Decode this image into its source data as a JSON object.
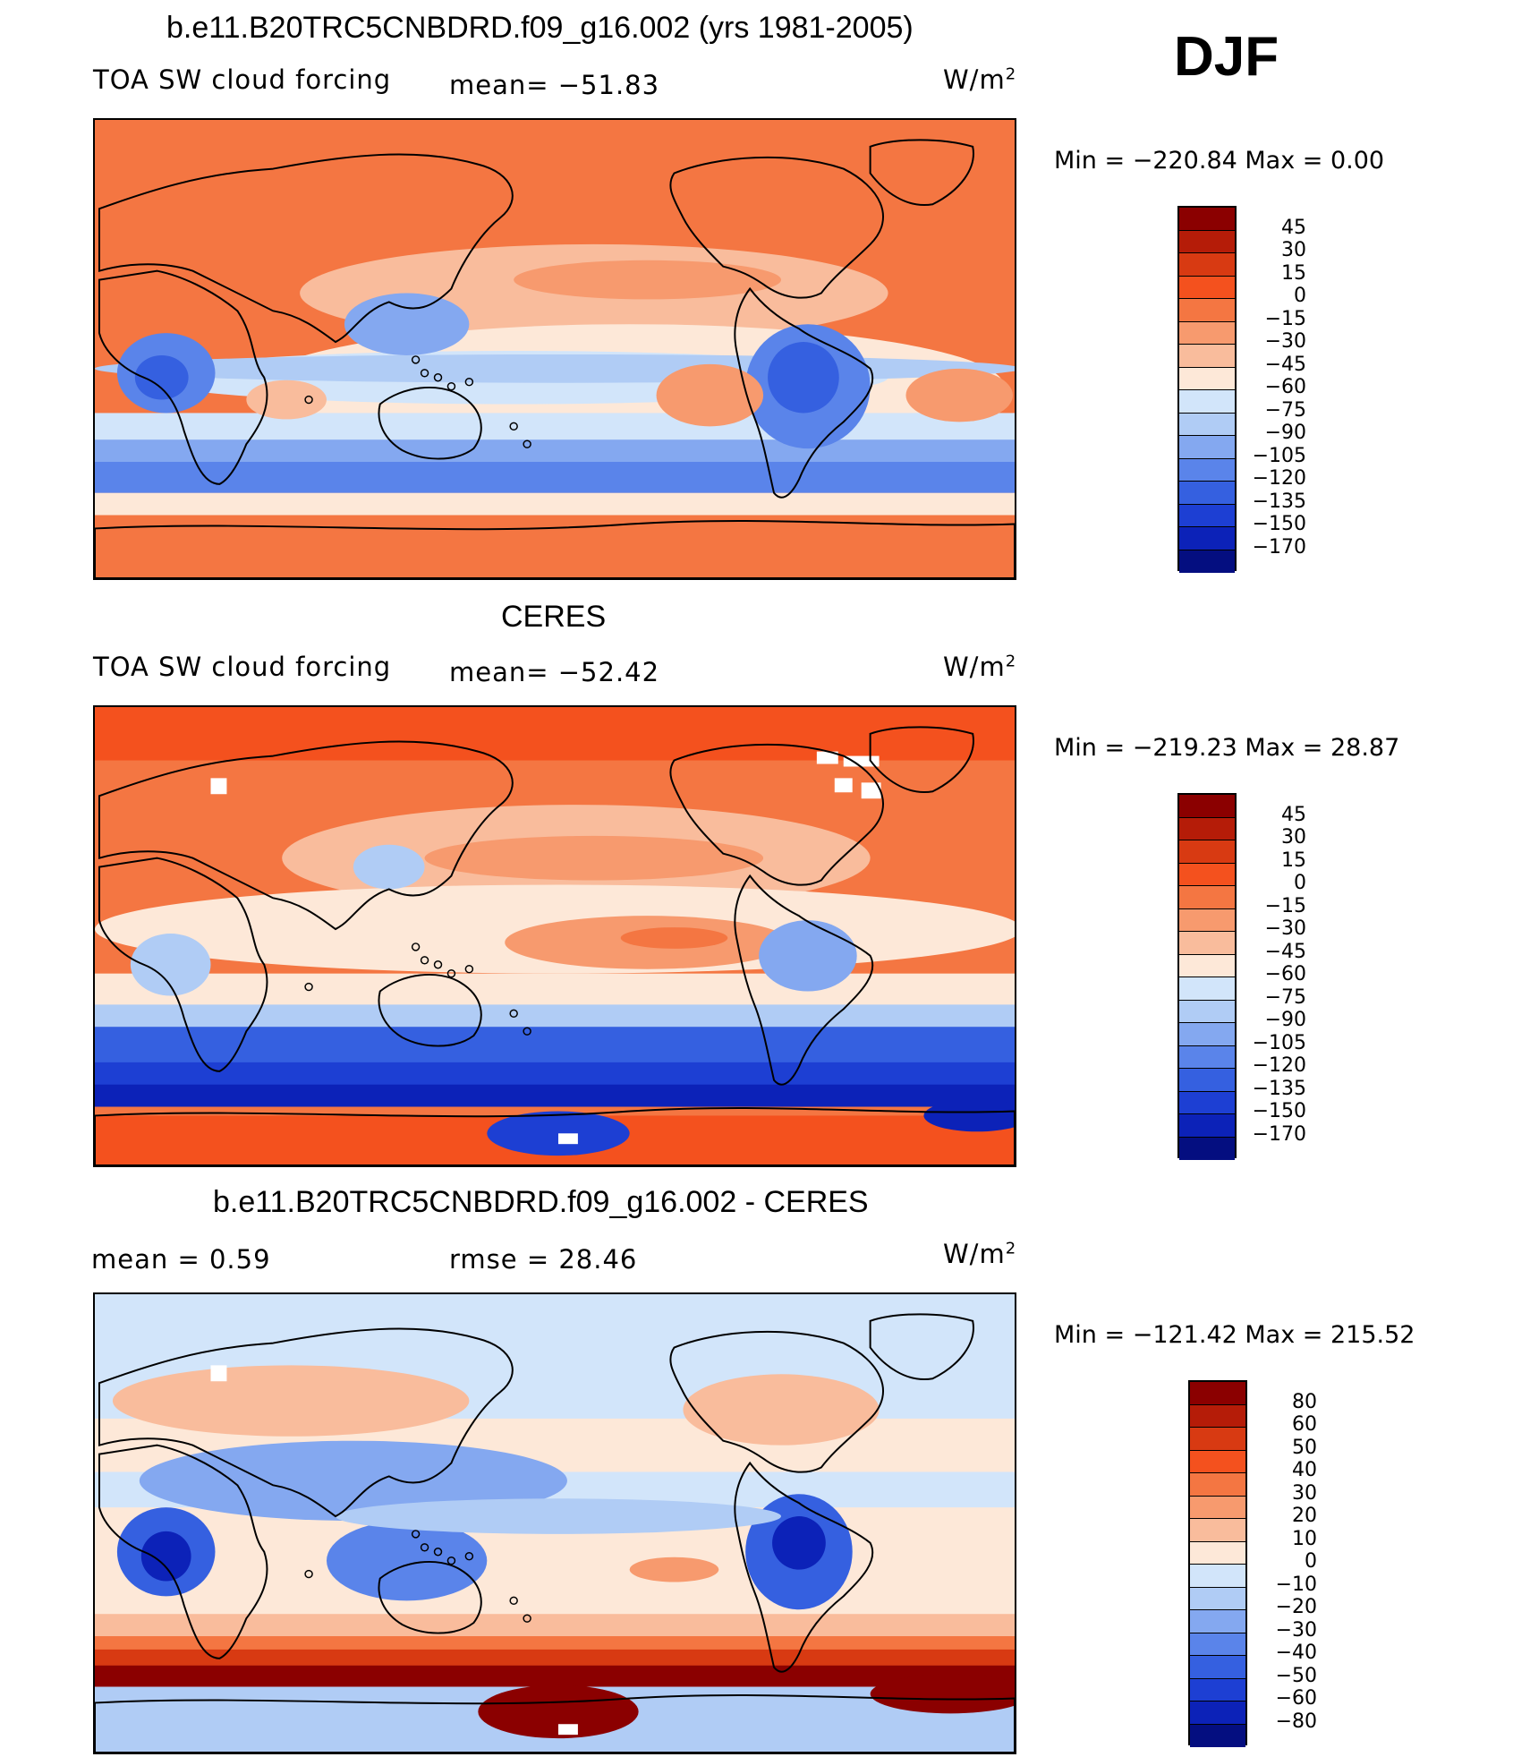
{
  "season": "DJF",
  "units_base": "W/m",
  "units_exp": "2",
  "panels": [
    {
      "title": "b.e11.B20TRC5CNBDRD.f09_g16.002 (yrs 1981-2005)",
      "left_label": "TOA SW cloud forcing",
      "center_label": "mean= −51.83",
      "minmax": "Min = −220.84 Max =    0.00",
      "style": "model"
    },
    {
      "title": "CERES",
      "left_label": "TOA SW cloud forcing",
      "center_label": "mean= −52.42",
      "minmax": "Min = −219.23 Max =   28.87",
      "style": "obs"
    },
    {
      "title": "b.e11.B20TRC5CNBDRD.f09_g16.002 - CERES",
      "left_label": "mean =    0.59",
      "center_label": "rmse =   28.46",
      "minmax": "Min = −121.42 Max = 215.52",
      "style": "diff"
    }
  ],
  "colorbar_main": {
    "labels": [
      "45",
      "30",
      "15",
      "0",
      "−15",
      "−30",
      "−45",
      "−60",
      "−75",
      "−90",
      "−105",
      "−120",
      "−135",
      "−150",
      "−170"
    ],
    "colors": [
      "#8b0000",
      "#b51c08",
      "#d83a12",
      "#f4511e",
      "#f47642",
      "#f79a6e",
      "#f9bc9c",
      "#fde8d8",
      "#d2e5fa",
      "#b0ccf5",
      "#84a8f0",
      "#5a84ea",
      "#3560e0",
      "#1d3fd3",
      "#0c22b8",
      "#040e80"
    ]
  },
  "colorbar_diff": {
    "labels": [
      "80",
      "60",
      "50",
      "40",
      "30",
      "20",
      "10",
      "0",
      "−10",
      "−20",
      "−30",
      "−40",
      "−50",
      "−60",
      "−80"
    ],
    "colors": [
      "#8b0000",
      "#b51c08",
      "#d83a12",
      "#f4511e",
      "#f47642",
      "#f79a6e",
      "#f9bc9c",
      "#fde8d8",
      "#d2e5fa",
      "#b0ccf5",
      "#84a8f0",
      "#5a84ea",
      "#3560e0",
      "#1d3fd3",
      "#0c22b8",
      "#040e80"
    ]
  }
}
